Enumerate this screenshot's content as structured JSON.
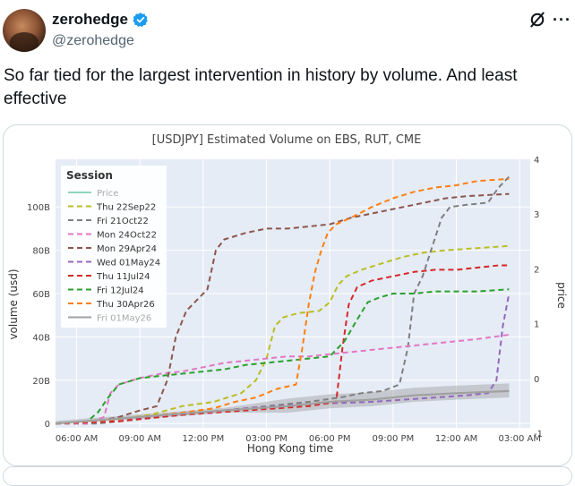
{
  "tweet": {
    "author_name": "zerohedge",
    "author_handle": "@zerohedge",
    "text": "So far tied for the largest intervention in history by volume. And least effective"
  },
  "chart_data": {
    "type": "line",
    "title": "[USDJPY] Estimated Volume on EBS, RUT, CME",
    "xlabel": "Hong Kong time",
    "ylabel": "volume (usd)",
    "y2label": "price",
    "x_ticks": [
      "06:00 AM",
      "09:00 AM",
      "12:00 PM",
      "03:00 PM",
      "06:00 PM",
      "09:00 PM",
      "12:00 AM",
      "03:00 AM"
    ],
    "y_ticks": [
      "0",
      "20B",
      "40B",
      "60B",
      "80B",
      "100B"
    ],
    "y2_ticks": [
      "-1",
      "0",
      "1",
      "2",
      "3",
      "4"
    ],
    "ylim": [
      -2,
      122
    ],
    "grid": true,
    "legend": {
      "title": "Session",
      "placement": "top-left"
    },
    "series": [
      {
        "name": "Price",
        "color": "#8fd6b8",
        "style": "solid",
        "points": []
      },
      {
        "name": "Thu 22Sep22",
        "color": "#bcbd22",
        "style": "dashed",
        "points": [
          [
            0,
            0
          ],
          [
            1.5,
            0
          ],
          [
            3,
            2
          ],
          [
            4.5,
            4
          ],
          [
            6,
            8
          ],
          [
            7.5,
            10
          ],
          [
            8.8,
            14
          ],
          [
            9.5,
            20
          ],
          [
            10,
            30
          ],
          [
            10.4,
            45
          ],
          [
            10.8,
            49
          ],
          [
            11.5,
            51
          ],
          [
            12.5,
            52
          ],
          [
            13,
            56
          ],
          [
            13.4,
            64
          ],
          [
            13.8,
            68
          ],
          [
            14.5,
            71
          ],
          [
            15.5,
            74
          ],
          [
            16.5,
            77
          ],
          [
            17.5,
            79
          ],
          [
            18.5,
            80
          ],
          [
            20,
            81
          ],
          [
            21.5,
            82
          ]
        ]
      },
      {
        "name": "Fri 21Oct22",
        "color": "#7f7f7f",
        "style": "dashed",
        "points": [
          [
            0,
            0
          ],
          [
            2,
            0
          ],
          [
            4,
            2
          ],
          [
            6,
            4
          ],
          [
            8,
            6
          ],
          [
            10,
            8
          ],
          [
            12,
            10
          ],
          [
            13.5,
            12
          ],
          [
            14.5,
            14
          ],
          [
            15.5,
            15
          ],
          [
            16.3,
            18
          ],
          [
            16.7,
            35
          ],
          [
            17,
            60
          ],
          [
            17.4,
            68
          ],
          [
            17.8,
            80
          ],
          [
            18.3,
            95
          ],
          [
            18.7,
            100
          ],
          [
            19.5,
            101
          ],
          [
            20.5,
            102
          ],
          [
            21,
            109
          ],
          [
            21.5,
            114
          ]
        ]
      },
      {
        "name": "Mon 24Oct22",
        "color": "#e377c2",
        "style": "dashed",
        "points": [
          [
            0,
            0
          ],
          [
            1.5,
            0
          ],
          [
            2.3,
            3
          ],
          [
            2.6,
            14
          ],
          [
            3,
            18
          ],
          [
            4,
            21
          ],
          [
            5,
            23
          ],
          [
            6,
            24
          ],
          [
            7,
            26
          ],
          [
            8,
            28
          ],
          [
            9,
            29
          ],
          [
            10,
            30
          ],
          [
            11,
            31
          ],
          [
            12,
            31
          ],
          [
            13,
            32
          ],
          [
            14,
            33
          ],
          [
            15,
            34
          ],
          [
            16,
            35
          ],
          [
            17,
            36
          ],
          [
            18,
            37
          ],
          [
            19,
            38
          ],
          [
            20,
            39
          ],
          [
            21.5,
            41
          ]
        ]
      },
      {
        "name": "Mon 29Apr24",
        "color": "#8c564b",
        "style": "dashed",
        "points": [
          [
            0,
            0
          ],
          [
            2,
            1
          ],
          [
            3,
            3
          ],
          [
            4,
            6
          ],
          [
            4.8,
            8
          ],
          [
            5.3,
            20
          ],
          [
            5.7,
            40
          ],
          [
            6.2,
            52
          ],
          [
            6.6,
            56
          ],
          [
            7.2,
            62
          ],
          [
            7.6,
            80
          ],
          [
            8,
            85
          ],
          [
            9,
            88
          ],
          [
            10,
            90
          ],
          [
            11,
            90
          ],
          [
            12,
            91
          ],
          [
            13,
            92
          ],
          [
            14,
            95
          ],
          [
            15,
            97
          ],
          [
            16,
            99
          ],
          [
            17,
            101
          ],
          [
            18.5,
            104
          ],
          [
            19.5,
            105
          ],
          [
            21.5,
            106
          ]
        ]
      },
      {
        "name": "Wed 01May24",
        "color": "#9467bd",
        "style": "dashed",
        "points": [
          [
            0,
            0
          ],
          [
            3,
            2
          ],
          [
            6,
            4
          ],
          [
            9,
            7
          ],
          [
            12,
            9
          ],
          [
            15,
            10
          ],
          [
            18,
            12
          ],
          [
            19.5,
            13
          ],
          [
            20.5,
            14
          ],
          [
            20.9,
            20
          ],
          [
            21.2,
            45
          ],
          [
            21.5,
            60
          ]
        ]
      },
      {
        "name": "Thu 11Jul24",
        "color": "#d62728",
        "style": "dashed",
        "points": [
          [
            0,
            0
          ],
          [
            3,
            1
          ],
          [
            6,
            4
          ],
          [
            9,
            6
          ],
          [
            12,
            8
          ],
          [
            13.3,
            10
          ],
          [
            13.6,
            35
          ],
          [
            13.9,
            55
          ],
          [
            14.3,
            63
          ],
          [
            15,
            66
          ],
          [
            16,
            68
          ],
          [
            17,
            70
          ],
          [
            18,
            71
          ],
          [
            19,
            71
          ],
          [
            20,
            72
          ],
          [
            21,
            73
          ],
          [
            21.5,
            73
          ]
        ]
      },
      {
        "name": "Fri 12Jul24",
        "color": "#2ca02c",
        "style": "dashed",
        "points": [
          [
            0,
            0
          ],
          [
            1.5,
            1
          ],
          [
            2,
            5
          ],
          [
            2.5,
            12
          ],
          [
            3,
            18
          ],
          [
            4,
            21
          ],
          [
            5,
            22
          ],
          [
            6,
            23
          ],
          [
            7,
            24
          ],
          [
            8,
            25
          ],
          [
            9,
            27
          ],
          [
            10,
            28
          ],
          [
            11,
            29
          ],
          [
            12,
            30
          ],
          [
            13,
            31
          ],
          [
            13.7,
            38
          ],
          [
            14.3,
            48
          ],
          [
            14.8,
            56
          ],
          [
            15.3,
            58
          ],
          [
            16,
            60
          ],
          [
            17,
            60
          ],
          [
            18,
            61
          ],
          [
            19,
            61
          ],
          [
            20,
            61
          ],
          [
            21.5,
            62
          ]
        ]
      },
      {
        "name": "Thu 30Apr26",
        "color": "#ff7f0e",
        "style": "dashed",
        "points": [
          [
            0,
            0
          ],
          [
            3,
            2
          ],
          [
            6,
            5
          ],
          [
            7.5,
            7
          ],
          [
            8.5,
            10
          ],
          [
            9.5,
            12
          ],
          [
            10.5,
            16
          ],
          [
            11.4,
            18
          ],
          [
            11.7,
            35
          ],
          [
            12,
            55
          ],
          [
            12.3,
            70
          ],
          [
            12.6,
            80
          ],
          [
            12.9,
            88
          ],
          [
            13.3,
            92
          ],
          [
            14,
            95
          ],
          [
            15,
            100
          ],
          [
            16,
            104
          ],
          [
            17,
            107
          ],
          [
            18,
            109
          ],
          [
            19,
            110
          ],
          [
            20,
            112
          ],
          [
            21.5,
            113
          ]
        ]
      },
      {
        "name": "Fri 01May26",
        "color": "#a0a0a0",
        "style": "solid",
        "points": [
          [
            0,
            0
          ],
          [
            4,
            3
          ],
          [
            8,
            6
          ],
          [
            11,
            8
          ],
          [
            13,
            10
          ],
          [
            15,
            11
          ],
          [
            17,
            13
          ],
          [
            19,
            14
          ],
          [
            21.5,
            15
          ]
        ]
      }
    ]
  }
}
